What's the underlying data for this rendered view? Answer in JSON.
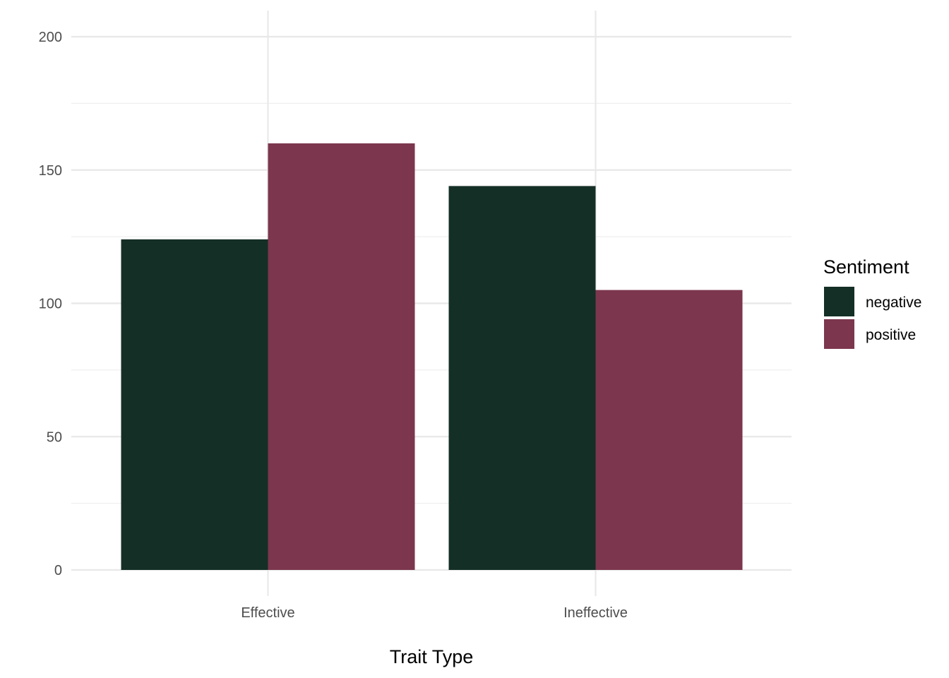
{
  "chart_data": {
    "type": "bar",
    "title": "",
    "xlabel": "Trait Type",
    "ylabel": "",
    "categories": [
      "Effective",
      "Ineffective"
    ],
    "series": [
      {
        "name": "negative",
        "color": "#142f26",
        "values": [
          124,
          144
        ]
      },
      {
        "name": "positive",
        "color": "#7c364e",
        "values": [
          160,
          105
        ]
      }
    ],
    "ylim": [
      0,
      200
    ],
    "yticks": [
      0,
      50,
      100,
      150,
      200
    ],
    "grid": true,
    "legend": {
      "title": "Sentiment",
      "position": "right"
    }
  }
}
